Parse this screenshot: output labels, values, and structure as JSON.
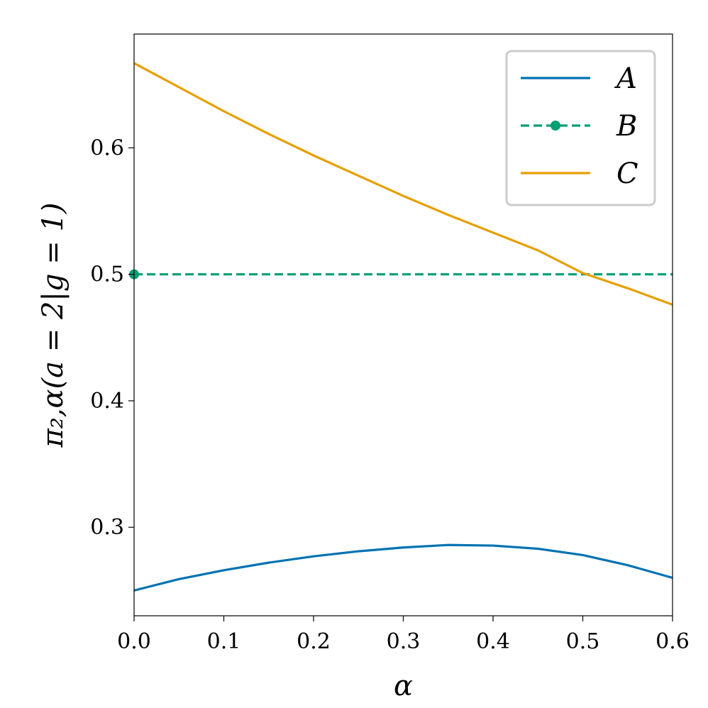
{
  "chart_data": {
    "type": "line",
    "title": "",
    "xlabel": "α",
    "ylabel": "π₂,α(a = 2|g = 1)",
    "xlim": [
      0.0,
      0.6
    ],
    "ylim": [
      0.23,
      0.69
    ],
    "x_ticks": [
      "0.0",
      "0.1",
      "0.2",
      "0.3",
      "0.4",
      "0.5",
      "0.6"
    ],
    "y_ticks": [
      "0.3",
      "0.4",
      "0.5",
      "0.6"
    ],
    "grid": false,
    "legend_position": "top-right",
    "x": [
      0.0,
      0.05,
      0.1,
      0.15,
      0.2,
      0.25,
      0.3,
      0.35,
      0.4,
      0.45,
      0.5,
      0.55,
      0.6
    ],
    "series": [
      {
        "name": "A",
        "color": "#0072b2",
        "style": "solid",
        "marker": "none",
        "values": [
          0.25,
          0.259,
          0.266,
          0.272,
          0.277,
          0.281,
          0.284,
          0.286,
          0.2855,
          0.283,
          0.278,
          0.27,
          0.26
        ]
      },
      {
        "name": "B",
        "color": "#009e73",
        "style": "dashed",
        "marker": "circle",
        "values": [
          0.5,
          0.5,
          0.5,
          0.5,
          0.5,
          0.5,
          0.5,
          0.5,
          0.5,
          0.5,
          0.5,
          0.5,
          0.5
        ]
      },
      {
        "name": "C",
        "color": "#e69f00",
        "style": "solid",
        "marker": "none",
        "values": [
          0.667,
          0.648,
          0.629,
          0.611,
          0.594,
          0.578,
          0.562,
          0.547,
          0.533,
          0.519,
          0.501,
          0.489,
          0.476
        ]
      }
    ]
  }
}
